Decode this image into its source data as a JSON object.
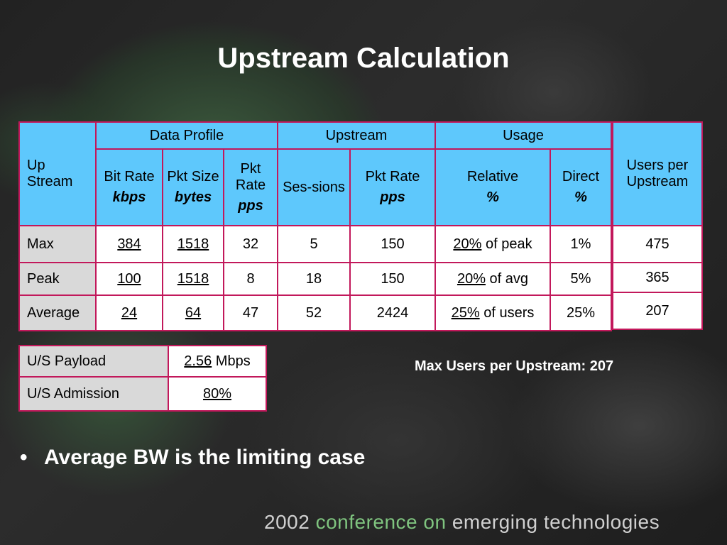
{
  "title": "Upstream Calculation",
  "main_table": {
    "corner_label": "Up Stream",
    "group_headers": [
      "Data Profile",
      "Upstream",
      "Usage"
    ],
    "columns": [
      {
        "label": "Bit Rate",
        "unit": "kbps"
      },
      {
        "label": "Pkt Size",
        "unit": "bytes"
      },
      {
        "label": "Pkt Rate",
        "unit": "pps"
      },
      {
        "label": "Ses-sions",
        "unit": ""
      },
      {
        "label": "Pkt Rate",
        "unit": "pps"
      },
      {
        "label": "Relative",
        "unit": "%"
      },
      {
        "label": "Direct",
        "unit": "%"
      }
    ],
    "rows": [
      {
        "label": "Max",
        "bit_rate": "384",
        "pkt_size": "1518",
        "pkt_rate": "32",
        "sessions": "5",
        "up_pkt_rate": "150",
        "relative_pct": "20%",
        "relative_suffix": " of peak",
        "direct": "1%"
      },
      {
        "label": "Peak",
        "bit_rate": "100",
        "pkt_size": "1518",
        "pkt_rate": "8",
        "sessions": "18",
        "up_pkt_rate": "150",
        "relative_pct": "20%",
        "relative_suffix": " of avg",
        "direct": "5%"
      },
      {
        "label": "Average",
        "bit_rate": "24",
        "pkt_size": "64",
        "pkt_rate": "47",
        "sessions": "52",
        "up_pkt_rate": "2424",
        "relative_pct": "25%",
        "relative_suffix": " of users",
        "direct": "25%"
      }
    ]
  },
  "users_table": {
    "header": "Users per Upstream",
    "values": [
      "475",
      "365",
      "207"
    ]
  },
  "summary_table": {
    "payload_label": "U/S Payload",
    "payload_value": "2.56",
    "payload_unit": " Mbps",
    "admission_label": "U/S Admission",
    "admission_value": "80%"
  },
  "max_users_text": "Max Users per Upstream: 207",
  "bullet_text": "Average BW is the limiting case",
  "footer": {
    "year": "2002",
    "middle": "conference on",
    "end": "emerging technologies"
  }
}
